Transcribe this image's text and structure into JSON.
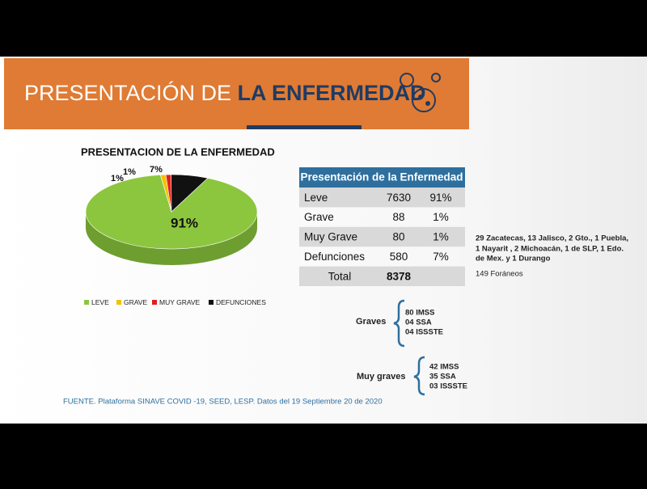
{
  "header": {
    "title_light": "PRESENTACIÓN DE",
    "title_bold": "LA ENFERMEDAD"
  },
  "chart_data": {
    "type": "pie",
    "title": "PRESENTACION DE LA ENFERMEDAD",
    "categories": [
      "LEVE",
      "GRAVE",
      "MUY GRAVE",
      "DEFUNCIONES"
    ],
    "values": [
      91,
      1,
      1,
      7
    ],
    "value_labels": [
      "91%",
      "1%",
      "1%",
      "7%"
    ],
    "colors": [
      "#8cc63f",
      "#f2c200",
      "#e0201b",
      "#111111"
    ],
    "legend": "bottom"
  },
  "table": {
    "title": "Presentación de la Enfermedad",
    "rows": [
      [
        "Leve",
        "7630",
        "91%"
      ],
      [
        "Grave",
        "88",
        "1%"
      ],
      [
        "Muy Grave",
        "80",
        "1%"
      ],
      [
        "Defunciones",
        "580",
        "7%"
      ],
      [
        "Total",
        "8378"
      ]
    ]
  },
  "note": {
    "lines": [
      "29 Zacatecas, 13 Jalisco, 2 Gto., 1 Puebla,",
      "1 Nayarit , 2 Michoacán, 1 de SLP, 1 Edo.",
      "de Mex. y 1 Durango"
    ],
    "foraneos": "149 Foráneos"
  },
  "graves": {
    "label": "Graves",
    "items": [
      "80 IMSS",
      "04 SSA",
      "04 ISSSTE"
    ]
  },
  "muy_graves": {
    "label": "Muy graves",
    "items": [
      "42 IMSS",
      "35 SSA",
      "03 ISSSTE"
    ]
  },
  "footer": "FUENTE. Plataforma SINAVE COVID -19, SEED, LESP. Datos del 19 Septiembre 20 de 2020"
}
